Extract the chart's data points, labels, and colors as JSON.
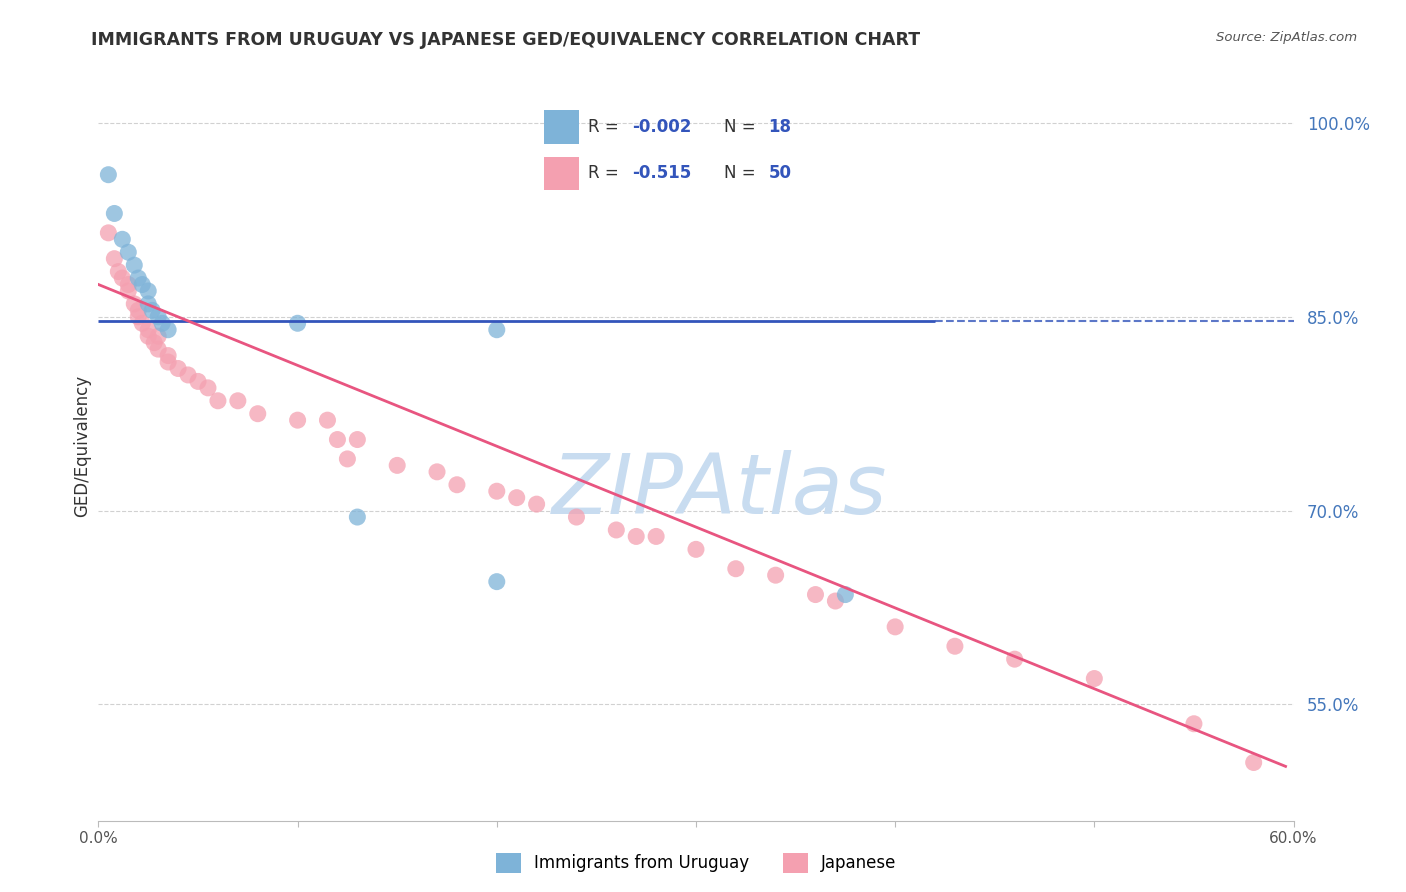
{
  "title": "IMMIGRANTS FROM URUGUAY VS JAPANESE GED/EQUIVALENCY CORRELATION CHART",
  "source": "Source: ZipAtlas.com",
  "xlabel_legend1": "Immigrants from Uruguay",
  "xlabel_legend2": "Japanese",
  "ylabel": "GED/Equivalency",
  "xlim": [
    0.0,
    0.6
  ],
  "ylim": [
    0.46,
    1.04
  ],
  "xticks": [
    0.0,
    0.1,
    0.2,
    0.3,
    0.4,
    0.5,
    0.6
  ],
  "xticklabels": [
    "0.0%",
    "",
    "",
    "",
    "",
    "",
    "60.0%"
  ],
  "yticks": [
    0.55,
    0.7,
    0.85,
    1.0
  ],
  "yticklabels": [
    "55.0%",
    "70.0%",
    "85.0%",
    "100.0%"
  ],
  "legend_R1": "-0.002",
  "legend_N1": "18",
  "legend_R2": "-0.515",
  "legend_N2": "50",
  "blue_color": "#7EB3D8",
  "pink_color": "#F4A0B0",
  "blue_line_color": "#3355BB",
  "pink_line_color": "#E85580",
  "watermark": "ZIPAtlas",
  "watermark_color": "#C8DCF0",
  "blue_scatter_x": [
    0.005,
    0.008,
    0.012,
    0.015,
    0.018,
    0.02,
    0.022,
    0.025,
    0.025,
    0.027,
    0.03,
    0.032,
    0.035,
    0.1,
    0.13,
    0.2,
    0.2,
    0.375
  ],
  "blue_scatter_y": [
    0.96,
    0.93,
    0.91,
    0.9,
    0.89,
    0.88,
    0.875,
    0.87,
    0.86,
    0.855,
    0.85,
    0.845,
    0.84,
    0.845,
    0.695,
    0.645,
    0.84,
    0.635
  ],
  "pink_scatter_x": [
    0.005,
    0.008,
    0.01,
    0.012,
    0.015,
    0.015,
    0.018,
    0.02,
    0.02,
    0.022,
    0.025,
    0.025,
    0.028,
    0.03,
    0.03,
    0.035,
    0.035,
    0.04,
    0.045,
    0.05,
    0.055,
    0.06,
    0.07,
    0.08,
    0.1,
    0.115,
    0.12,
    0.125,
    0.13,
    0.15,
    0.17,
    0.18,
    0.2,
    0.21,
    0.22,
    0.24,
    0.26,
    0.27,
    0.28,
    0.3,
    0.32,
    0.34,
    0.36,
    0.37,
    0.4,
    0.43,
    0.46,
    0.5,
    0.55,
    0.58
  ],
  "pink_scatter_y": [
    0.915,
    0.895,
    0.885,
    0.88,
    0.875,
    0.87,
    0.86,
    0.855,
    0.85,
    0.845,
    0.84,
    0.835,
    0.83,
    0.835,
    0.825,
    0.82,
    0.815,
    0.81,
    0.805,
    0.8,
    0.795,
    0.785,
    0.785,
    0.775,
    0.77,
    0.77,
    0.755,
    0.74,
    0.755,
    0.735,
    0.73,
    0.72,
    0.715,
    0.71,
    0.705,
    0.695,
    0.685,
    0.68,
    0.68,
    0.67,
    0.655,
    0.65,
    0.635,
    0.63,
    0.61,
    0.595,
    0.585,
    0.57,
    0.535,
    0.505
  ],
  "blue_solid_line_x": [
    0.0,
    0.42
  ],
  "blue_solid_line_y": [
    0.847,
    0.847
  ],
  "blue_dashed_line_x": [
    0.42,
    0.6
  ],
  "blue_dashed_line_y": [
    0.847,
    0.847
  ],
  "pink_line_x": [
    0.0,
    0.596
  ],
  "pink_line_y": [
    0.875,
    0.502
  ],
  "background_color": "#FFFFFF",
  "grid_color": "#CCCCCC"
}
